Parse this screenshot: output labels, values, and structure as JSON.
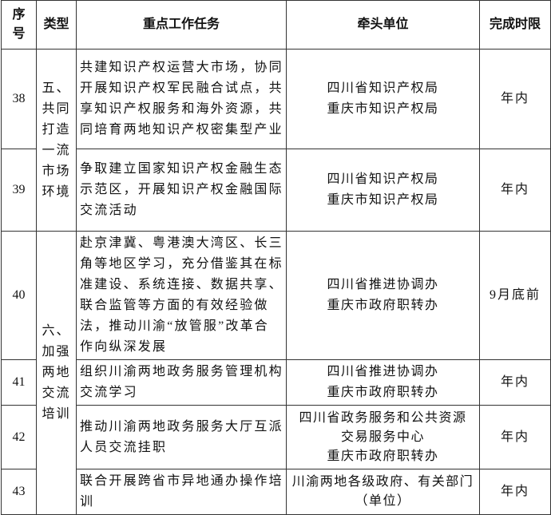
{
  "table": {
    "header": [
      "序号",
      "类型",
      "重点工作任务",
      "牵头单位",
      "完成时限"
    ],
    "types": [
      "五、共同打造一流市场环境",
      "六、加强两地交流培训"
    ],
    "rows": [
      {
        "no": "38",
        "task": "共建知识产权运营大市场，协同开展知识产权军民融合试点，共享知识产权服务和海外资源，共同培育两地知识产权密集型产业",
        "lead": [
          "四川省知识产权局",
          "重庆市知识产权局"
        ],
        "deadline": "年内"
      },
      {
        "no": "39",
        "task": "争取建立国家知识产权金融生态示范区，开展知识产权金融国际交流活动",
        "lead": [
          "四川省知识产权局",
          "重庆市知识产权局"
        ],
        "deadline": "年内"
      },
      {
        "no": "40",
        "task": "赴京津冀、粤港澳大湾区、长三角等地区学习，充分借鉴其在标准建设、系统连接、数据共享、联合监管等方面的有效经验做法，推动川渝“放管服”改革合作向纵深发展",
        "lead": [
          "四川省推进协调办",
          "重庆市政府职转办"
        ],
        "deadline": "9月底前"
      },
      {
        "no": "41",
        "task": "组织川渝两地政务服务管理机构交流学习",
        "lead": [
          "四川省推进协调办",
          "重庆市政府职转办"
        ],
        "deadline": "年内"
      },
      {
        "no": "42",
        "task": "推动川渝两地政务服务大厅互派人员交流挂职",
        "lead": [
          "四川省政务服务和公共资源交易服务中心",
          "重庆市政府职转办"
        ],
        "deadline": "年内"
      },
      {
        "no": "43",
        "task": "联合开展跨省市异地通办操作培训",
        "lead": [
          "川渝两地各级政府、有关部门（单位）"
        ],
        "deadline": "年内"
      }
    ]
  }
}
